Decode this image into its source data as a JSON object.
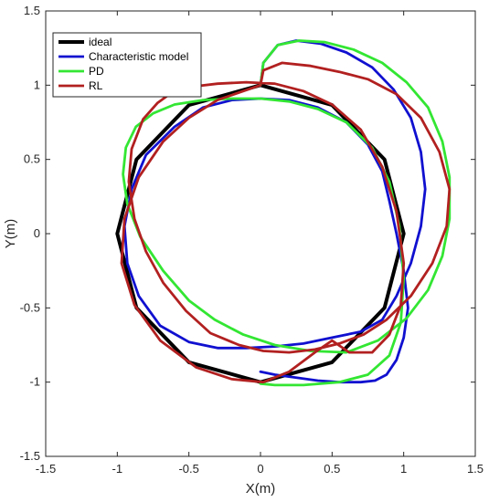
{
  "chart_data": {
    "type": "line",
    "xlabel": "X(m)",
    "ylabel": "Y(m)",
    "xlim": [
      -1.5,
      1.5
    ],
    "ylim": [
      -1.5,
      1.5
    ],
    "xticks": [
      "-1.5",
      "-1",
      "-0.5",
      "0",
      "0.5",
      "1",
      "1.5"
    ],
    "yticks": [
      "-1.5",
      "-1",
      "-0.5",
      "0",
      "0.5",
      "1",
      "1.5"
    ],
    "grid": false,
    "legend_position": "top-left",
    "series": [
      {
        "name": "ideal",
        "color": "#000000",
        "x": [
          0,
          0.5,
          0.866,
          1,
          0.866,
          0.5,
          0,
          -0.5,
          -0.866,
          -1,
          -0.866,
          -0.5,
          0
        ],
        "y": [
          1,
          0.866,
          0.5,
          0,
          -0.5,
          -0.866,
          -1,
          -0.866,
          -0.5,
          0,
          0.5,
          0.866,
          1
        ]
      },
      {
        "name": "Characteristic model",
        "color": "#1010d0",
        "x": [
          0,
          0.02,
          0.12,
          0.25,
          0.42,
          0.6,
          0.78,
          0.93,
          1.05,
          1.12,
          1.15,
          1.12,
          1.05,
          0.95,
          0.85,
          0.7,
          0.5,
          0.3,
          0.1,
          -0.1,
          -0.3,
          -0.5,
          -0.7,
          -0.85,
          -0.93,
          -0.95,
          -0.9,
          -0.8,
          -0.6,
          -0.4,
          -0.2,
          0,
          0.2,
          0.4,
          0.6,
          0.75,
          0.85,
          0.9,
          0.95,
          1,
          1.03,
          1,
          0.95,
          0.88,
          0.8,
          0.7,
          0.55,
          0.4,
          0.25,
          0.1,
          0
        ],
        "y": [
          1.0,
          1.15,
          1.27,
          1.3,
          1.28,
          1.22,
          1.12,
          0.97,
          0.78,
          0.55,
          0.3,
          0.05,
          -0.2,
          -0.42,
          -0.58,
          -0.66,
          -0.7,
          -0.74,
          -0.76,
          -0.77,
          -0.77,
          -0.73,
          -0.62,
          -0.42,
          -0.2,
          0.05,
          0.3,
          0.53,
          0.72,
          0.85,
          0.9,
          0.91,
          0.9,
          0.85,
          0.75,
          0.6,
          0.42,
          0.22,
          0.0,
          -0.25,
          -0.5,
          -0.7,
          -0.85,
          -0.95,
          -0.99,
          -1.0,
          -1.0,
          -0.99,
          -0.97,
          -0.95,
          -0.93
        ]
      },
      {
        "name": "PD",
        "color": "#33e633",
        "x": [
          0,
          0.02,
          0.12,
          0.27,
          0.45,
          0.65,
          0.85,
          1.02,
          1.17,
          1.27,
          1.32,
          1.32,
          1.27,
          1.17,
          1.02,
          0.82,
          0.6,
          0.35,
          0.1,
          -0.12,
          -0.32,
          -0.5,
          -0.68,
          -0.84,
          -0.93,
          -0.96,
          -0.94,
          -0.87,
          -0.75,
          -0.6,
          -0.4,
          -0.2,
          0,
          0.2,
          0.4,
          0.6,
          0.78,
          0.9,
          0.97,
          1.0,
          0.98,
          0.9,
          0.75,
          0.55,
          0.3,
          0.1,
          0
        ],
        "y": [
          1.0,
          1.15,
          1.27,
          1.3,
          1.29,
          1.24,
          1.15,
          1.02,
          0.85,
          0.62,
          0.38,
          0.1,
          -0.15,
          -0.38,
          -0.57,
          -0.72,
          -0.8,
          -0.79,
          -0.75,
          -0.68,
          -0.58,
          -0.45,
          -0.25,
          -0.02,
          0.2,
          0.4,
          0.58,
          0.72,
          0.81,
          0.87,
          0.9,
          0.91,
          0.91,
          0.89,
          0.84,
          0.75,
          0.58,
          0.35,
          0.05,
          -0.3,
          -0.6,
          -0.82,
          -0.95,
          -1.0,
          -1.02,
          -1.02,
          -1.01
        ]
      },
      {
        "name": "RL",
        "color": "#b22020",
        "x": [
          0,
          0.02,
          0.15,
          0.35,
          0.55,
          0.75,
          0.95,
          1.12,
          1.25,
          1.32,
          1.3,
          1.2,
          1.05,
          0.88,
          0.72,
          0.55,
          0.38,
          0.2,
          0.02,
          -0.15,
          -0.35,
          -0.52,
          -0.68,
          -0.8,
          -0.88,
          -0.92,
          -0.9,
          -0.82,
          -0.72,
          -0.62,
          -0.48,
          -0.3,
          -0.1,
          0.1,
          0.3,
          0.5,
          0.7,
          0.85,
          0.95,
          1.0,
          0.98,
          0.9,
          0.78,
          0.62,
          0.5,
          0.38,
          0.2,
          0.02,
          -0.2,
          -0.45,
          -0.7,
          -0.88,
          -0.97,
          -0.95,
          -0.85,
          -0.68,
          -0.5,
          -0.3,
          -0.12,
          0
        ],
        "y": [
          1.0,
          1.1,
          1.15,
          1.13,
          1.09,
          1.04,
          0.94,
          0.78,
          0.55,
          0.3,
          0.05,
          -0.2,
          -0.42,
          -0.58,
          -0.68,
          -0.74,
          -0.78,
          -0.8,
          -0.79,
          -0.75,
          -0.67,
          -0.52,
          -0.33,
          -0.12,
          0.1,
          0.35,
          0.57,
          0.77,
          0.88,
          0.95,
          0.99,
          1.01,
          1.02,
          1.01,
          0.96,
          0.87,
          0.7,
          0.45,
          0.15,
          -0.2,
          -0.48,
          -0.68,
          -0.8,
          -0.8,
          -0.72,
          -0.8,
          -0.93,
          -1.0,
          -0.98,
          -0.9,
          -0.72,
          -0.48,
          -0.2,
          0.1,
          0.38,
          0.62,
          0.78,
          0.9,
          0.96,
          1.0
        ]
      }
    ]
  }
}
